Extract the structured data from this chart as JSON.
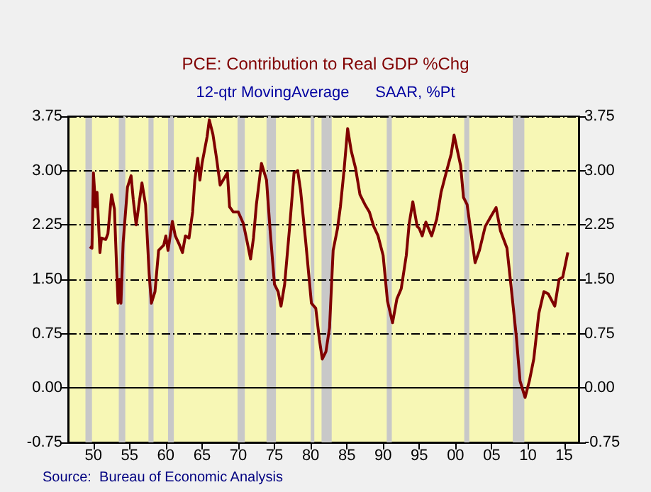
{
  "chart_data": {
    "type": "line",
    "title": "PCE: Contribution to Real GDP %Chg",
    "subtitle": "12-qtr MovingAverage      SAAR, %Pt",
    "annotations": [
      "Source:  Bureau of Economic Analysis"
    ],
    "series": [
      {
        "color": "#800000",
        "x": [
          1949.5,
          1949.8,
          1950.0,
          1950.3,
          1950.5,
          1950.9,
          1951.1,
          1951.7,
          1952.0,
          1952.5,
          1952.9,
          1953.2,
          1953.4,
          1953.6,
          1953.8,
          1954.1,
          1954.7,
          1955.2,
          1955.5,
          1955.9,
          1956.7,
          1957.2,
          1957.7,
          1958.0,
          1958.5,
          1959.0,
          1959.7,
          1960.0,
          1960.3,
          1960.9,
          1961.3,
          1961.9,
          1962.3,
          1962.7,
          1963.2,
          1963.7,
          1964.0,
          1964.4,
          1964.7,
          1965.0,
          1965.7,
          1966.0,
          1966.5,
          1967.0,
          1967.5,
          1968.5,
          1968.8,
          1969.3,
          1970.0,
          1970.7,
          1971.2,
          1971.7,
          1972.1,
          1972.5,
          1973.2,
          1973.9,
          1974.4,
          1975.0,
          1975.5,
          1975.9,
          1976.4,
          1977.1,
          1977.7,
          1978.2,
          1978.6,
          1979.3,
          1980.1,
          1980.7,
          1981.2,
          1981.6,
          1982.1,
          1982.6,
          1983.1,
          1983.7,
          1984.1,
          1984.6,
          1985.1,
          1985.6,
          1986.2,
          1986.8,
          1987.5,
          1988.1,
          1988.7,
          1989.3,
          1990.0,
          1990.6,
          1991.3,
          1991.9,
          1992.5,
          1993.2,
          1993.6,
          1994.1,
          1994.7,
          1995.0,
          1995.4,
          1995.9,
          1996.7,
          1997.4,
          1998.0,
          1998.7,
          1999.4,
          1999.8,
          2000.7,
          2001.1,
          2001.6,
          2002.7,
          2003.3,
          2004.1,
          2004.9,
          2005.6,
          2006.2,
          2007.1,
          2007.7,
          2008.4,
          2008.9,
          2009.6,
          2010.2,
          2010.8,
          2011.5,
          2012.2,
          2012.8,
          2013.7,
          2014.3,
          2014.8,
          2015.5
        ],
        "values": [
          1.95,
          1.93,
          2.97,
          2.5,
          2.7,
          1.87,
          2.07,
          2.05,
          2.13,
          2.67,
          2.47,
          1.67,
          1.17,
          1.5,
          1.17,
          2.0,
          2.77,
          2.93,
          2.6,
          2.25,
          2.83,
          2.53,
          1.57,
          1.17,
          1.33,
          1.9,
          1.97,
          2.1,
          1.9,
          2.3,
          2.1,
          1.97,
          1.87,
          2.1,
          2.07,
          2.43,
          2.87,
          3.17,
          2.87,
          3.1,
          3.47,
          3.7,
          3.5,
          3.17,
          2.8,
          2.97,
          2.5,
          2.43,
          2.43,
          2.27,
          2.03,
          1.78,
          2.07,
          2.53,
          3.1,
          2.87,
          2.17,
          1.43,
          1.33,
          1.13,
          1.43,
          2.23,
          2.97,
          3.0,
          2.73,
          2.03,
          1.17,
          1.1,
          0.67,
          0.4,
          0.5,
          0.83,
          1.9,
          2.2,
          2.5,
          3.0,
          3.58,
          3.27,
          3.03,
          2.67,
          2.53,
          2.43,
          2.23,
          2.1,
          1.83,
          1.2,
          0.9,
          1.23,
          1.37,
          1.83,
          2.27,
          2.57,
          2.23,
          2.2,
          2.1,
          2.29,
          2.1,
          2.33,
          2.7,
          2.97,
          3.23,
          3.49,
          3.07,
          2.63,
          2.53,
          1.73,
          1.9,
          2.23,
          2.37,
          2.49,
          2.17,
          1.93,
          1.37,
          0.7,
          0.1,
          -0.13,
          0.1,
          0.4,
          1.03,
          1.33,
          1.3,
          1.13,
          1.5,
          1.53,
          1.87
        ]
      }
    ],
    "xlim": [
      1946.5,
      2017
    ],
    "xticks": [
      {
        "value": 1950,
        "label": "50"
      },
      {
        "value": 1955,
        "label": "55"
      },
      {
        "value": 1960,
        "label": "60"
      },
      {
        "value": 1965,
        "label": "65"
      },
      {
        "value": 1970,
        "label": "70"
      },
      {
        "value": 1975,
        "label": "75"
      },
      {
        "value": 1980,
        "label": "80"
      },
      {
        "value": 1985,
        "label": "85"
      },
      {
        "value": 1990,
        "label": "90"
      },
      {
        "value": 1995,
        "label": "95"
      },
      {
        "value": 2000,
        "label": "00"
      },
      {
        "value": 2005,
        "label": "05"
      },
      {
        "value": 2010,
        "label": "10"
      },
      {
        "value": 2015,
        "label": "15"
      }
    ],
    "ylim": [
      -0.75,
      3.75
    ],
    "yticks": [
      -0.75,
      {
        "value": 0,
        "label": "0.00"
      },
      0.75,
      {
        "value": 1.5,
        "label": "1.50"
      },
      2.25,
      {
        "value": 3,
        "label": "3.00"
      },
      3.75
    ],
    "y2lim": [
      -0.75,
      3.75
    ],
    "y2ticks": [
      -0.75,
      {
        "value": 0,
        "label": "0.00"
      },
      0.75,
      {
        "value": 1.5,
        "label": "1.50"
      },
      2.25,
      {
        "value": 3,
        "label": "3.00"
      },
      3.75
    ],
    "grid": "y",
    "ref_lines": [
      {
        "axis": "y",
        "value": 0,
        "color": "#000000",
        "line_style": "solid"
      }
    ],
    "bands": [
      {
        "axis": "x",
        "from": 1948.9,
        "to": 1949.8,
        "color": "#c8c8c8"
      },
      {
        "axis": "x",
        "from": 1953.5,
        "to": 1954.4,
        "color": "#c8c8c8"
      },
      {
        "axis": "x",
        "from": 1957.6,
        "to": 1958.3,
        "color": "#c8c8c8"
      },
      {
        "axis": "x",
        "from": 1960.3,
        "to": 1961.1,
        "color": "#c8c8c8"
      },
      {
        "axis": "x",
        "from": 1969.9,
        "to": 1970.9,
        "color": "#c8c8c8"
      },
      {
        "axis": "x",
        "from": 1973.9,
        "to": 1975.2,
        "color": "#c8c8c8"
      },
      {
        "axis": "x",
        "from": 1980.0,
        "to": 1980.5,
        "color": "#c8c8c8"
      },
      {
        "axis": "x",
        "from": 1981.5,
        "to": 1982.9,
        "color": "#c8c8c8"
      },
      {
        "axis": "x",
        "from": 1990.5,
        "to": 1991.2,
        "color": "#c8c8c8"
      },
      {
        "axis": "x",
        "from": 2001.2,
        "to": 2001.9,
        "color": "#c8c8c8"
      },
      {
        "axis": "x",
        "from": 2007.9,
        "to": 2009.5,
        "color": "#c8c8c8"
      }
    ],
    "marker": "none",
    "line_style": "solid"
  }
}
